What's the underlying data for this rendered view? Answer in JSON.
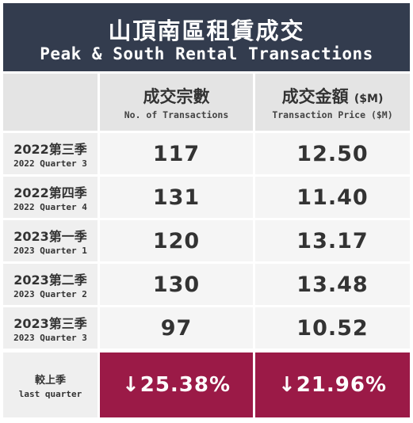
{
  "header": {
    "title_zh": "山頂南區租賃成交",
    "title_en": "Peak & South Rental Transactions"
  },
  "columns": [
    {
      "zh": "成交宗數",
      "unit": "",
      "en": "No. of Transactions"
    },
    {
      "zh": "成交金額",
      "unit": "($M)",
      "en": "Transaction Price ($M)"
    }
  ],
  "rows": [
    {
      "zh": "2022第三季",
      "en": "2022 Quarter 3",
      "transactions": "117",
      "price": "12.50"
    },
    {
      "zh": "2022第四季",
      "en": "2022 Quarter 4",
      "transactions": "131",
      "price": "11.40"
    },
    {
      "zh": "2023第一季",
      "en": "2023 Quarter 1",
      "transactions": "120",
      "price": "13.17"
    },
    {
      "zh": "2023第二季",
      "en": "2023 Quarter 2",
      "transactions": "130",
      "price": "13.48"
    },
    {
      "zh": "2023第三季",
      "en": "2023 Quarter 3",
      "transactions": "97",
      "price": "10.52"
    }
  ],
  "comparison": {
    "label_zh": "較上季",
    "label_en": "last quarter",
    "transactions_change": "↓25.38%",
    "price_change": "↓21.96%"
  },
  "colors": {
    "header_bg": "#333c4e",
    "change_bg": "#9b1a47"
  },
  "chart_data": {
    "type": "table",
    "title": "山頂南區租賃成交 Peak & South Rental Transactions",
    "categories": [
      "2022 Quarter 3",
      "2022 Quarter 4",
      "2023 Quarter 1",
      "2023 Quarter 2",
      "2023 Quarter 3"
    ],
    "series": [
      {
        "name": "No. of Transactions",
        "values": [
          117,
          131,
          120,
          130,
          97
        ]
      },
      {
        "name": "Transaction Price ($M)",
        "values": [
          12.5,
          11.4,
          13.17,
          13.48,
          10.52
        ]
      }
    ],
    "change_vs_last_quarter": {
      "No. of Transactions": -25.38,
      "Transaction Price ($M)": -21.96
    }
  }
}
